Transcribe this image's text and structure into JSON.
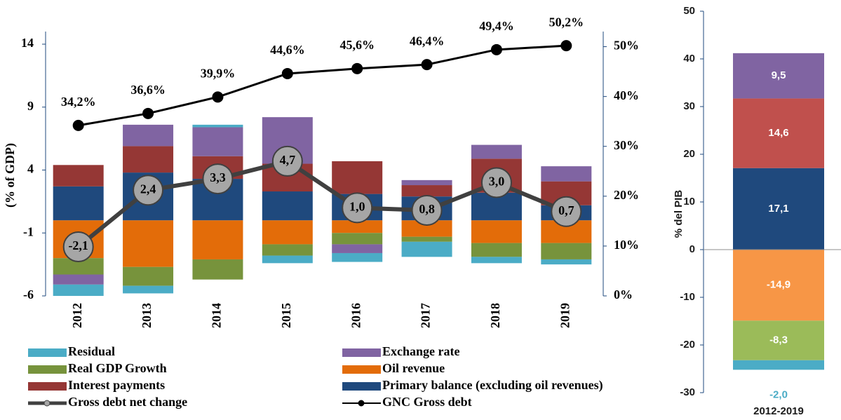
{
  "chart_data": [
    {
      "type": "bar",
      "categories": [
        "2012",
        "2013",
        "2014",
        "2015",
        "2016",
        "2017",
        "2018",
        "2019"
      ],
      "ylabel": "(% of GDP)",
      "ylim": [
        -6,
        14
      ],
      "yticks": [
        -6,
        -1,
        4,
        9,
        14
      ],
      "y2lim": [
        0,
        50.5
      ],
      "y2ticks": [
        {
          "value": 0,
          "label": "0%"
        },
        {
          "value": 10,
          "label": "10%"
        },
        {
          "value": 20,
          "label": "20%"
        },
        {
          "value": 30,
          "label": "30%"
        },
        {
          "value": 40,
          "label": "40%"
        },
        {
          "value": 50,
          "label": "50%"
        }
      ],
      "series": [
        {
          "name": "Residual",
          "type": "bar",
          "color": "#4bacc6",
          "values": [
            -0.9,
            -0.6,
            0.2,
            -0.6,
            -0.7,
            -1.2,
            -0.5,
            -0.4
          ]
        },
        {
          "name": "Exchange rate",
          "type": "bar",
          "color": "#8064a2",
          "values": [
            -0.8,
            1.7,
            2.3,
            3.7,
            -0.7,
            0.4,
            1.1,
            1.2
          ]
        },
        {
          "name": "Real GDP Growth",
          "type": "bar",
          "color": "#77933c",
          "values": [
            -1.3,
            -1.5,
            -1.6,
            -0.9,
            -0.9,
            -0.4,
            -1.1,
            -1.3
          ]
        },
        {
          "name": "Oil  revenue",
          "type": "bar",
          "color": "#e36c09",
          "values": [
            -3.0,
            -3.7,
            -3.1,
            -1.9,
            -1.0,
            -1.3,
            -1.8,
            -1.8
          ]
        },
        {
          "name": "Interest payments",
          "type": "bar",
          "color": "#953735",
          "values": [
            1.7,
            2.1,
            1.8,
            2.2,
            2.6,
            0.9,
            2.7,
            1.9
          ]
        },
        {
          "name": "Primary balance (excluding oil revenues)",
          "type": "bar",
          "color": "#1f497d",
          "values": [
            2.7,
            3.8,
            3.3,
            2.3,
            2.1,
            1.9,
            2.2,
            1.2
          ]
        },
        {
          "name": "Gross debt net change",
          "type": "line",
          "color": "#404040",
          "values": [
            -2.1,
            2.4,
            3.3,
            4.7,
            1.0,
            0.8,
            3.0,
            0.7
          ],
          "value_labels": [
            "-2,1",
            "2,4",
            "3,3",
            "4,7",
            "1,0",
            "0,8",
            "3,0",
            "0,7"
          ]
        },
        {
          "name": "GNC Gross debt",
          "type": "line",
          "axis": "y2",
          "color": "#000000",
          "values": [
            34.2,
            36.6,
            39.9,
            44.6,
            45.6,
            46.4,
            49.4,
            50.2
          ],
          "value_labels": [
            "34,2%",
            "36,6%",
            "39,9%",
            "44,6%",
            "45,6%",
            "46,4%",
            "49,4%",
            "50,2%"
          ]
        }
      ]
    },
    {
      "type": "bar",
      "categories": [
        "2012-2019"
      ],
      "ylabel": "% del PIB",
      "ylim": [
        -30,
        50
      ],
      "yticks": [
        -30,
        -20,
        -10,
        0,
        10,
        20,
        30,
        40,
        50
      ],
      "series": [
        {
          "color": "#1f497d",
          "values": [
            17.1
          ],
          "value_labels": [
            "17,1"
          ]
        },
        {
          "color": "#c0504d",
          "values": [
            14.6
          ],
          "value_labels": [
            "14,6"
          ]
        },
        {
          "color": "#8064a2",
          "values": [
            9.5
          ],
          "value_labels": [
            "9,5"
          ]
        },
        {
          "color": "#f79646",
          "values": [
            -14.9
          ],
          "value_labels": [
            "-14,9"
          ]
        },
        {
          "color": "#9bbb59",
          "values": [
            -8.3
          ],
          "value_labels": [
            "-8,3"
          ]
        },
        {
          "color": "#4bacc6",
          "values": [
            -2.0
          ],
          "value_labels": [
            "-2,0"
          ]
        }
      ]
    }
  ]
}
